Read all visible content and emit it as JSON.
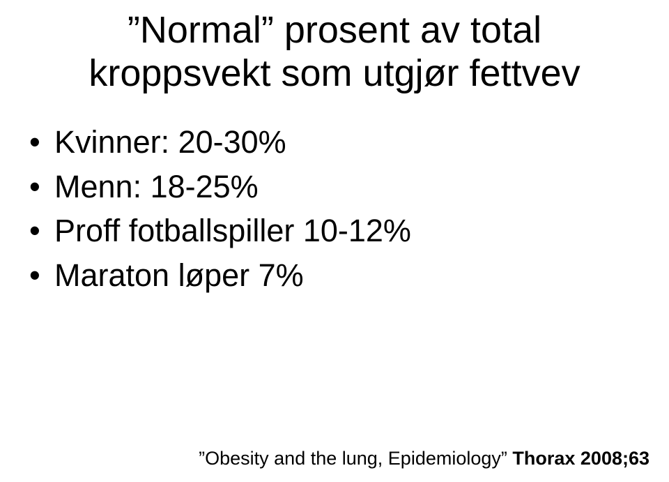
{
  "title_line1": "”Normal” prosent av total",
  "title_line2": "kroppsvekt som utgjør fettvev",
  "bullets": [
    "Kvinner: 20-30%",
    "Menn: 18-25%",
    "Proff fotballspiller 10-12%",
    "Maraton løper 7%"
  ],
  "footer_quote": "”Obesity and the lung, Epidemiology”",
  "footer_bold": " Thorax 2008;63",
  "colors": {
    "background": "#ffffff",
    "text": "#000000"
  },
  "typography": {
    "title_fontsize": 54,
    "bullet_fontsize": 45,
    "footer_fontsize": 27,
    "font_family": "Arial"
  }
}
